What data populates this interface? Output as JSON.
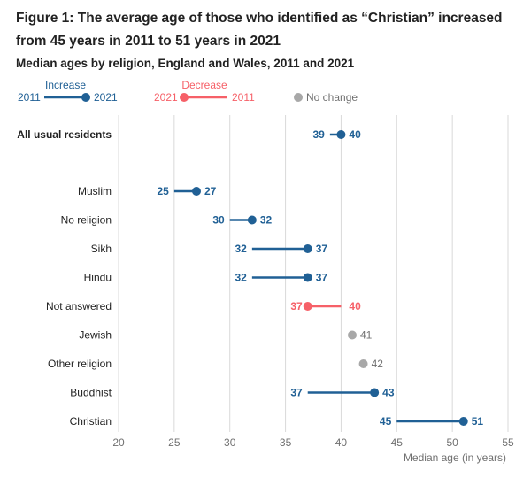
{
  "title": "Figure 1: The average age of those who identified as “Christian” increased from 45 years in 2011 to 51 years in 2021",
  "subtitle": "Median ages by religion, England and Wales, 2011 and 2021",
  "legend": {
    "increase": {
      "label": "Increase",
      "start": "2011",
      "end": "2021"
    },
    "decrease": {
      "label": "Decrease",
      "start": "2021",
      "end": "2011"
    },
    "nochange": {
      "label": "No change"
    }
  },
  "colors": {
    "increase": "#206095",
    "decrease": "#f66068",
    "nochange": "#a8a8a8",
    "grid": "#d9d9d9",
    "text": "#222222",
    "tick": "#707070"
  },
  "chart_data": {
    "type": "dumbbell",
    "title": "Median ages by religion, England and Wales, 2011 and 2021",
    "xlabel": "Median age (in years)",
    "xlim": [
      20,
      55
    ],
    "xticks": [
      20,
      25,
      30,
      35,
      40,
      45,
      50,
      55
    ],
    "grid": true,
    "legend_position": "top-left",
    "series": [
      {
        "name": "2011"
      },
      {
        "name": "2021"
      }
    ],
    "rows": [
      {
        "category": "All usual residents",
        "v2011": 39,
        "v2021": 40,
        "change": "increase",
        "bold": true
      },
      {
        "category": "Muslim",
        "v2011": 25,
        "v2021": 27,
        "change": "increase"
      },
      {
        "category": "No religion",
        "v2011": 30,
        "v2021": 32,
        "change": "increase"
      },
      {
        "category": "Sikh",
        "v2011": 32,
        "v2021": 37,
        "change": "increase"
      },
      {
        "category": "Hindu",
        "v2011": 32,
        "v2021": 37,
        "change": "increase"
      },
      {
        "category": "Not answered",
        "v2011": 40,
        "v2021": 37,
        "change": "decrease"
      },
      {
        "category": "Jewish",
        "v2011": 41,
        "v2021": 41,
        "change": "nochange"
      },
      {
        "category": "Other religion",
        "v2011": 42,
        "v2021": 42,
        "change": "nochange"
      },
      {
        "category": "Buddhist",
        "v2011": 37,
        "v2021": 43,
        "change": "increase"
      },
      {
        "category": "Christian",
        "v2011": 45,
        "v2021": 51,
        "change": "increase"
      }
    ]
  }
}
